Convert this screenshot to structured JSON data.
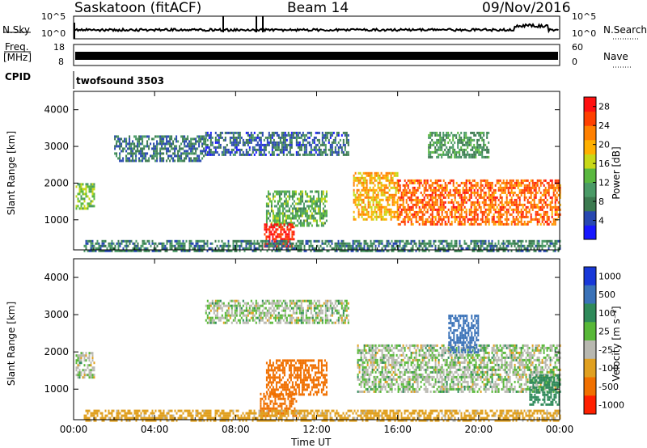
{
  "header": {
    "station": "Saskatoon (fitACF)",
    "beam": "Beam 14",
    "date": "09/Nov/2016"
  },
  "strips": {
    "nsky_label": "N.Sky",
    "nsearch_label": "N.Search",
    "freq_label_1": "Freq.",
    "freq_label_2": "[MHz]",
    "nave_label": "Nave",
    "cpid_label": "CPID",
    "cpid_value": "twofsound 3503",
    "noise_ticks": [
      "10^5",
      "10^0"
    ],
    "freq_ticks": [
      "18",
      "8"
    ],
    "nave_ticks": [
      "60",
      "0"
    ]
  },
  "colors": {
    "power_scale": [
      "#1818ff",
      "#2848b0",
      "#3c7a50",
      "#4a9a66",
      "#5ab840",
      "#c8d818",
      "#ffb000",
      "#ff8000",
      "#ff4000",
      "#ff1010"
    ],
    "velocity_scale": [
      "#1838d8",
      "#3a72b8",
      "#2f8a5a",
      "#58b838",
      "#b8b8b0",
      "#e0a020",
      "#f07000",
      "#ff2000"
    ]
  },
  "chart_data": [
    {
      "type": "heatmap",
      "panel": "power",
      "xlabel": "Time UT",
      "ylabel": "Slant Range [km]",
      "x_ticks": [
        "00:00",
        "04:00",
        "08:00",
        "12:00",
        "16:00",
        "20:00",
        "00:00"
      ],
      "xlim_hours": [
        0,
        24
      ],
      "y_ticks": [
        1000,
        2000,
        3000,
        4000
      ],
      "ylim": [
        180,
        4500
      ],
      "colorbar_label": "Power [dB]",
      "colorbar_ticks": [
        4,
        8,
        12,
        16,
        20,
        24,
        28
      ],
      "colorbar_range": [
        0,
        30
      ],
      "regions": [
        {
          "t0": 0.1,
          "t1": 1.0,
          "r0": 1300,
          "r1": 2000,
          "value": 14
        },
        {
          "t0": 2.0,
          "t1": 6.5,
          "r0": 2600,
          "r1": 3300,
          "value": 7
        },
        {
          "t0": 6.5,
          "t1": 13.6,
          "r0": 2750,
          "r1": 3400,
          "value": 6
        },
        {
          "t0": 9.5,
          "t1": 12.5,
          "r0": 850,
          "r1": 1800,
          "value": 12
        },
        {
          "t0": 9.4,
          "t1": 10.9,
          "r0": 250,
          "r1": 900,
          "value": 28
        },
        {
          "t0": 13.8,
          "t1": 16.0,
          "r0": 1000,
          "r1": 2300,
          "value": 20
        },
        {
          "t0": 16.0,
          "t1": 24.0,
          "r0": 900,
          "r1": 2100,
          "value": 24
        },
        {
          "t0": 17.5,
          "t1": 20.5,
          "r0": 2700,
          "r1": 3400,
          "value": 10
        },
        {
          "t0": 0.5,
          "t1": 24.0,
          "r0": 180,
          "r1": 450,
          "value": 8
        }
      ]
    },
    {
      "type": "heatmap",
      "panel": "velocity",
      "xlabel": "Time UT",
      "ylabel": "Slant Range [km]",
      "x_ticks": [
        "00:00",
        "04:00",
        "08:00",
        "12:00",
        "16:00",
        "20:00",
        "00:00"
      ],
      "xlim_hours": [
        0,
        24
      ],
      "y_ticks": [
        1000,
        2000,
        3000,
        4000
      ],
      "ylim": [
        180,
        4500
      ],
      "colorbar_label": "Velocity [m s⁻¹]",
      "colorbar_ticks": [
        "1000",
        "500",
        "100",
        "25",
        "-25",
        "-100",
        "-500",
        "-1000"
      ],
      "regions": [
        {
          "t0": 0.1,
          "t1": 1.0,
          "r0": 1300,
          "r1": 2000,
          "value": 0
        },
        {
          "t0": 6.5,
          "t1": 13.6,
          "r0": 2750,
          "r1": 3400,
          "value": 0
        },
        {
          "t0": 9.5,
          "t1": 12.5,
          "r0": 850,
          "r1": 1800,
          "value": -300
        },
        {
          "t0": 9.2,
          "t1": 11.0,
          "r0": 250,
          "r1": 900,
          "value": -400
        },
        {
          "t0": 14.0,
          "t1": 24.0,
          "r0": 900,
          "r1": 2200,
          "value": 0
        },
        {
          "t0": 18.5,
          "t1": 20.0,
          "r0": 2000,
          "r1": 3000,
          "value": 200
        },
        {
          "t0": 22.5,
          "t1": 24.0,
          "r0": 600,
          "r1": 1400,
          "value": 60
        },
        {
          "t0": 0.5,
          "t1": 24.0,
          "r0": 180,
          "r1": 450,
          "value": -50
        }
      ]
    }
  ]
}
